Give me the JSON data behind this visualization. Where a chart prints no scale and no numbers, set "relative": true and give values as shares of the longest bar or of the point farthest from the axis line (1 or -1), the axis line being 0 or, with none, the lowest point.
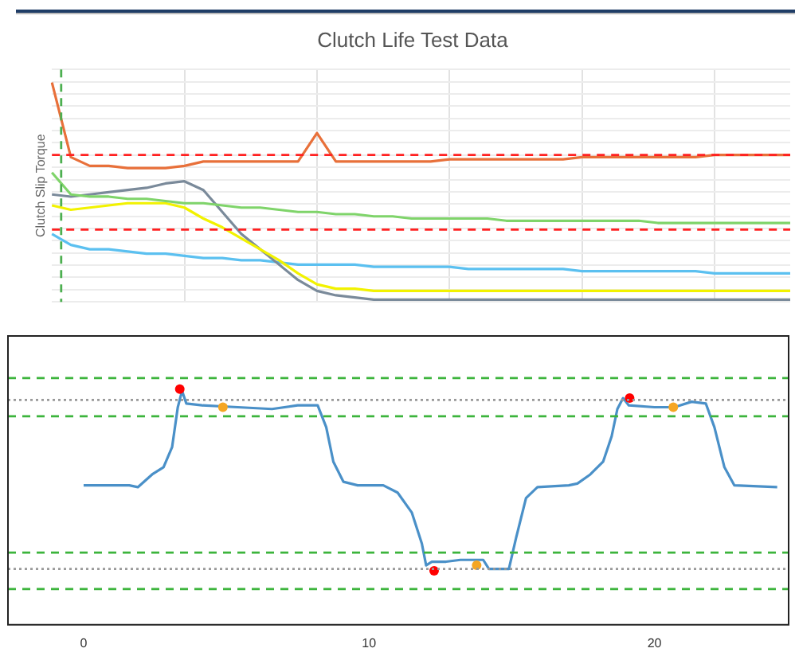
{
  "chart_data": [
    {
      "type": "line",
      "title": "Clutch Life Test Data",
      "ylabel": "Clutch Slip Torque",
      "relative": true,
      "grid": true,
      "legend": false,
      "marker": "none",
      "categories": [
        null,
        null,
        null,
        null,
        null,
        null,
        null,
        null,
        null,
        null,
        null,
        null,
        null,
        null,
        null,
        null,
        null,
        null,
        null,
        null,
        null,
        null,
        null,
        null,
        null,
        null,
        null,
        null,
        null,
        null,
        null,
        null,
        null,
        null,
        null,
        null,
        null,
        null,
        null,
        null
      ],
      "series": [
        {
          "color": "#e8703a",
          "values": [
            1.0,
            0.66,
            0.62,
            0.62,
            0.61,
            0.61,
            0.61,
            0.62,
            0.64,
            0.64,
            0.64,
            0.64,
            0.64,
            0.64,
            0.77,
            0.64,
            0.64,
            0.64,
            0.64,
            0.64,
            0.64,
            0.65,
            0.65,
            0.65,
            0.65,
            0.65,
            0.65,
            0.65,
            0.66,
            0.66,
            0.66,
            0.66,
            0.66,
            0.66,
            0.66,
            0.67,
            0.67,
            0.67,
            0.67,
            0.67
          ]
        },
        {
          "color": "#7fd46a",
          "values": [
            0.59,
            0.49,
            0.48,
            0.48,
            0.47,
            0.47,
            0.46,
            0.45,
            0.45,
            0.44,
            0.43,
            0.43,
            0.42,
            0.41,
            0.41,
            0.4,
            0.4,
            0.39,
            0.39,
            0.38,
            0.38,
            0.38,
            0.38,
            0.38,
            0.37,
            0.37,
            0.37,
            0.37,
            0.37,
            0.37,
            0.37,
            0.37,
            0.36,
            0.36,
            0.36,
            0.36,
            0.36,
            0.36,
            0.36,
            0.36
          ]
        },
        {
          "color": "#f2f200",
          "values": [
            0.44,
            0.42,
            0.43,
            0.44,
            0.45,
            0.45,
            0.45,
            0.43,
            0.38,
            0.34,
            0.29,
            0.24,
            0.19,
            0.13,
            0.08,
            0.06,
            0.06,
            0.05,
            0.05,
            0.05,
            0.05,
            0.05,
            0.05,
            0.05,
            0.05,
            0.05,
            0.05,
            0.05,
            0.05,
            0.05,
            0.05,
            0.05,
            0.05,
            0.05,
            0.05,
            0.05,
            0.05,
            0.05,
            0.05,
            0.05
          ]
        },
        {
          "color": "#7a8a9a",
          "values": [
            0.49,
            0.48,
            0.49,
            0.5,
            0.51,
            0.52,
            0.54,
            0.55,
            0.51,
            0.41,
            0.31,
            0.24,
            0.17,
            0.1,
            0.05,
            0.03,
            0.02,
            0.01,
            0.01,
            0.01,
            0.01,
            0.01,
            0.01,
            0.01,
            0.01,
            0.01,
            0.01,
            0.01,
            0.01,
            0.01,
            0.01,
            0.01,
            0.01,
            0.01,
            0.01,
            0.01,
            0.01,
            0.01,
            0.01,
            0.01
          ]
        },
        {
          "color": "#5bc0f0",
          "values": [
            0.31,
            0.26,
            0.24,
            0.24,
            0.23,
            0.22,
            0.22,
            0.21,
            0.2,
            0.2,
            0.19,
            0.19,
            0.18,
            0.17,
            0.17,
            0.17,
            0.17,
            0.16,
            0.16,
            0.16,
            0.16,
            0.16,
            0.15,
            0.15,
            0.15,
            0.15,
            0.15,
            0.15,
            0.14,
            0.14,
            0.14,
            0.14,
            0.14,
            0.14,
            0.14,
            0.13,
            0.13,
            0.13,
            0.13,
            0.13
          ]
        }
      ],
      "ref_lines": [
        {
          "axis": "y",
          "value": 0.67,
          "color": "#ff2020",
          "line_style": "dashed"
        },
        {
          "axis": "y",
          "value": 0.33,
          "color": "#ff2020",
          "line_style": "dashed"
        }
      ]
    },
    {
      "type": "line",
      "relative": true,
      "grid": false,
      "legend": false,
      "marker": "none",
      "tick_labels": "x",
      "xlim": [
        -2.65,
        24.7
      ],
      "xticks": [
        0,
        10,
        20
      ],
      "series": [
        {
          "color": "#4a90c8",
          "x": [
            0,
            1.6,
            1.9,
            2.4,
            2.8,
            3.1,
            3.3,
            3.45,
            3.6,
            4.15,
            5.4,
            6.6,
            7.5,
            8.2,
            8.5,
            8.75,
            9.1,
            9.6,
            10.5,
            11.0,
            11.5,
            11.85,
            12.0,
            12.2,
            12.7,
            13.2,
            14.0,
            14.2,
            14.9,
            15.15,
            15.5,
            15.9,
            17.0,
            17.3,
            17.75,
            18.2,
            18.5,
            18.7,
            18.9,
            19.1,
            20.0,
            20.7,
            21.3,
            21.8,
            22.1,
            22.45,
            22.8,
            24.3
          ],
          "values": [
            0.47,
            0.47,
            0.46,
            0.53,
            0.57,
            0.68,
            0.9,
            0.99,
            0.92,
            0.91,
            0.9,
            0.89,
            0.91,
            0.91,
            0.79,
            0.6,
            0.49,
            0.47,
            0.47,
            0.43,
            0.32,
            0.15,
            0.03,
            0.05,
            0.05,
            0.06,
            0.06,
            0.01,
            0.01,
            0.18,
            0.4,
            0.46,
            0.47,
            0.48,
            0.53,
            0.6,
            0.74,
            0.89,
            0.95,
            0.91,
            0.9,
            0.9,
            0.93,
            0.92,
            0.79,
            0.57,
            0.47,
            0.46
          ]
        },
        {
          "type": "scatter",
          "marker": "circle",
          "color": "#ff0000",
          "x": [
            3.37,
            12.28,
            19.13
          ],
          "values": [
            1.0,
            0.0,
            0.95
          ]
        },
        {
          "type": "scatter",
          "marker": "circle",
          "color": "#f5a623",
          "x": [
            4.88,
            13.77,
            20.66
          ],
          "values": [
            0.9,
            0.03,
            0.9
          ]
        }
      ],
      "ref_lines": [
        {
          "axis": "y",
          "value": 1.06,
          "color": "#3cb43c",
          "line_style": "dashed"
        },
        {
          "axis": "y",
          "value": 0.85,
          "color": "#3cb43c",
          "line_style": "dashed"
        },
        {
          "axis": "y",
          "value": 0.1,
          "color": "#3cb43c",
          "line_style": "dashed"
        },
        {
          "axis": "y",
          "value": -0.1,
          "color": "#3cb43c",
          "line_style": "dashed"
        },
        {
          "axis": "y",
          "value": 0.94,
          "color": "#999999",
          "line_style": "dotted"
        },
        {
          "axis": "y",
          "value": 0.01,
          "color": "#999999",
          "line_style": "dotted"
        }
      ]
    }
  ]
}
